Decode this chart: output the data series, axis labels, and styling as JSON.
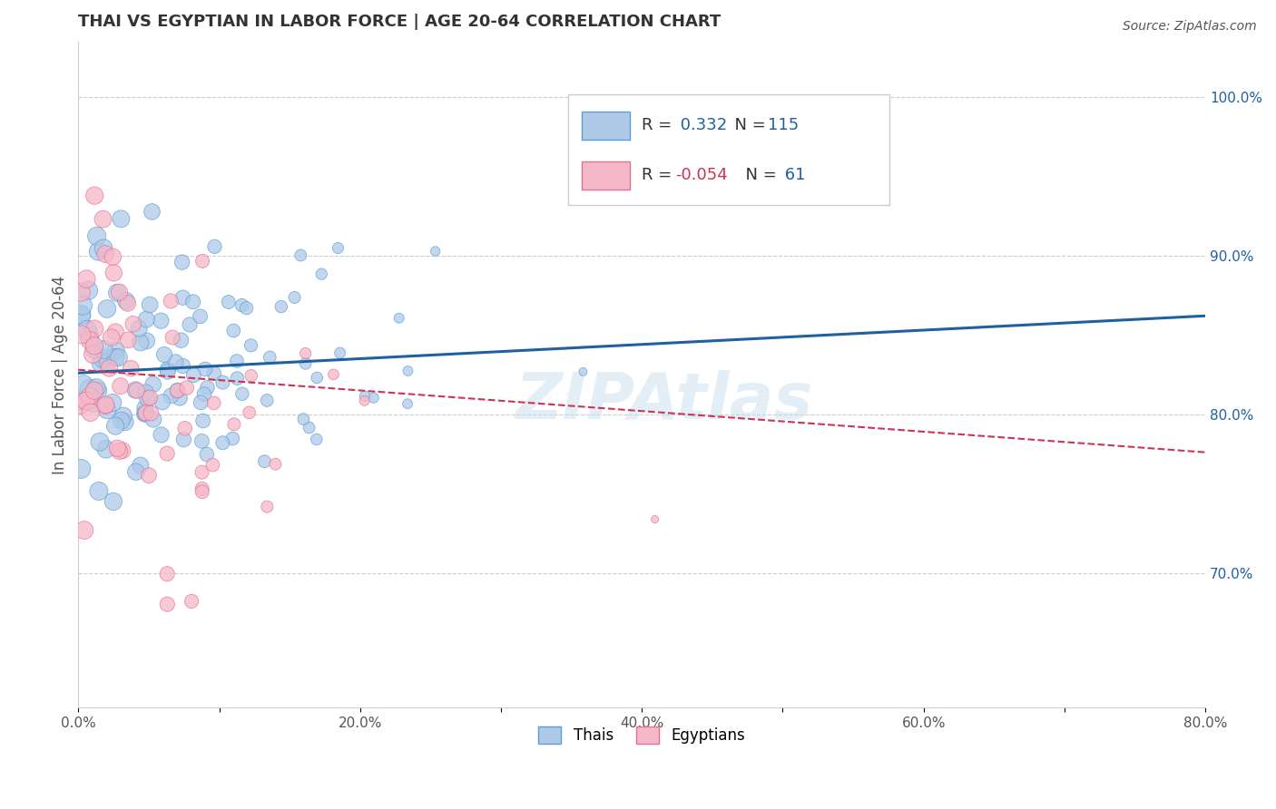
{
  "title": "THAI VS EGYPTIAN IN LABOR FORCE | AGE 20-64 CORRELATION CHART",
  "source": "Source: ZipAtlas.com",
  "ylabel": "In Labor Force | Age 20-64",
  "xlim": [
    0.0,
    0.8
  ],
  "ylim": [
    0.615,
    1.035
  ],
  "x_tick_labels": [
    "0.0%",
    "",
    "20.0%",
    "",
    "40.0%",
    "",
    "60.0%",
    "",
    "80.0%"
  ],
  "x_tick_positions": [
    0.0,
    0.1,
    0.2,
    0.3,
    0.4,
    0.5,
    0.6,
    0.7,
    0.8
  ],
  "y_tick_labels_right": [
    "70.0%",
    "80.0%",
    "90.0%",
    "100.0%"
  ],
  "y_tick_positions_right": [
    0.7,
    0.8,
    0.9,
    1.0
  ],
  "thai_fill_color": "#aec9e8",
  "thai_edge_color": "#5a9fd4",
  "egyptian_fill_color": "#f5b8c8",
  "egyptian_edge_color": "#e87090",
  "thai_line_color": "#2060a0",
  "egyptian_line_color": "#cc3355",
  "watermark": "ZIPAtlas",
  "legend_thai_r": "0.332",
  "legend_thai_n": "115",
  "legend_egyptian_r": "-0.054",
  "legend_egyptian_n": "61",
  "background_color": "#ffffff",
  "grid_color": "#cccccc",
  "thai_line_y0": 0.826,
  "thai_line_y1": 0.862,
  "egyptian_line_y0": 0.828,
  "egyptian_line_y1": 0.776
}
